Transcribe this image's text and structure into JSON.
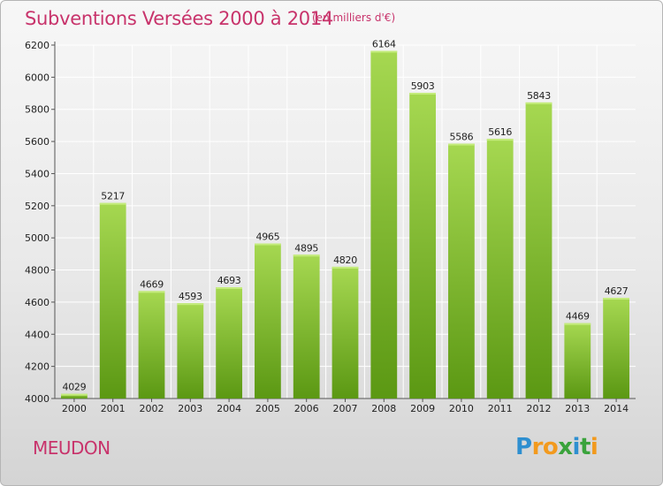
{
  "title": "Subventions Versées 2000 à 2014",
  "subtitle": "(en milliers d'€)",
  "commune": "MEUDON",
  "logo": {
    "text": "Proxiti",
    "letters": [
      "P",
      "r",
      "o",
      "x",
      "i",
      "t",
      "i"
    ],
    "colors": [
      "#2e8fd0",
      "#f29a1e",
      "#f29a1e",
      "#3aa33c",
      "#2e8fd0",
      "#3aa33c",
      "#f29a1e"
    ]
  },
  "colors": {
    "title": "#c8336b",
    "bar_light": "#9fd24a",
    "bar_dark": "#5d9a14",
    "grid": "#ffffff"
  },
  "chart_data": {
    "type": "bar",
    "title": "Subventions Versées 2000 à 2014",
    "subtitle": "(en milliers d'€)",
    "categories": [
      "2000",
      "2001",
      "2002",
      "2003",
      "2004",
      "2005",
      "2006",
      "2007",
      "2008",
      "2009",
      "2010",
      "2011",
      "2012",
      "2013",
      "2014"
    ],
    "values": [
      4029,
      5217,
      4669,
      4593,
      4693,
      4965,
      4895,
      4820,
      6164,
      5903,
      5586,
      5616,
      5843,
      4469,
      4627
    ],
    "ylim": [
      4000,
      6200
    ],
    "yticks": [
      4000,
      4200,
      4400,
      4600,
      4800,
      5000,
      5200,
      5400,
      5600,
      5800,
      6000,
      6200
    ],
    "grid": true,
    "data_labels": true
  }
}
